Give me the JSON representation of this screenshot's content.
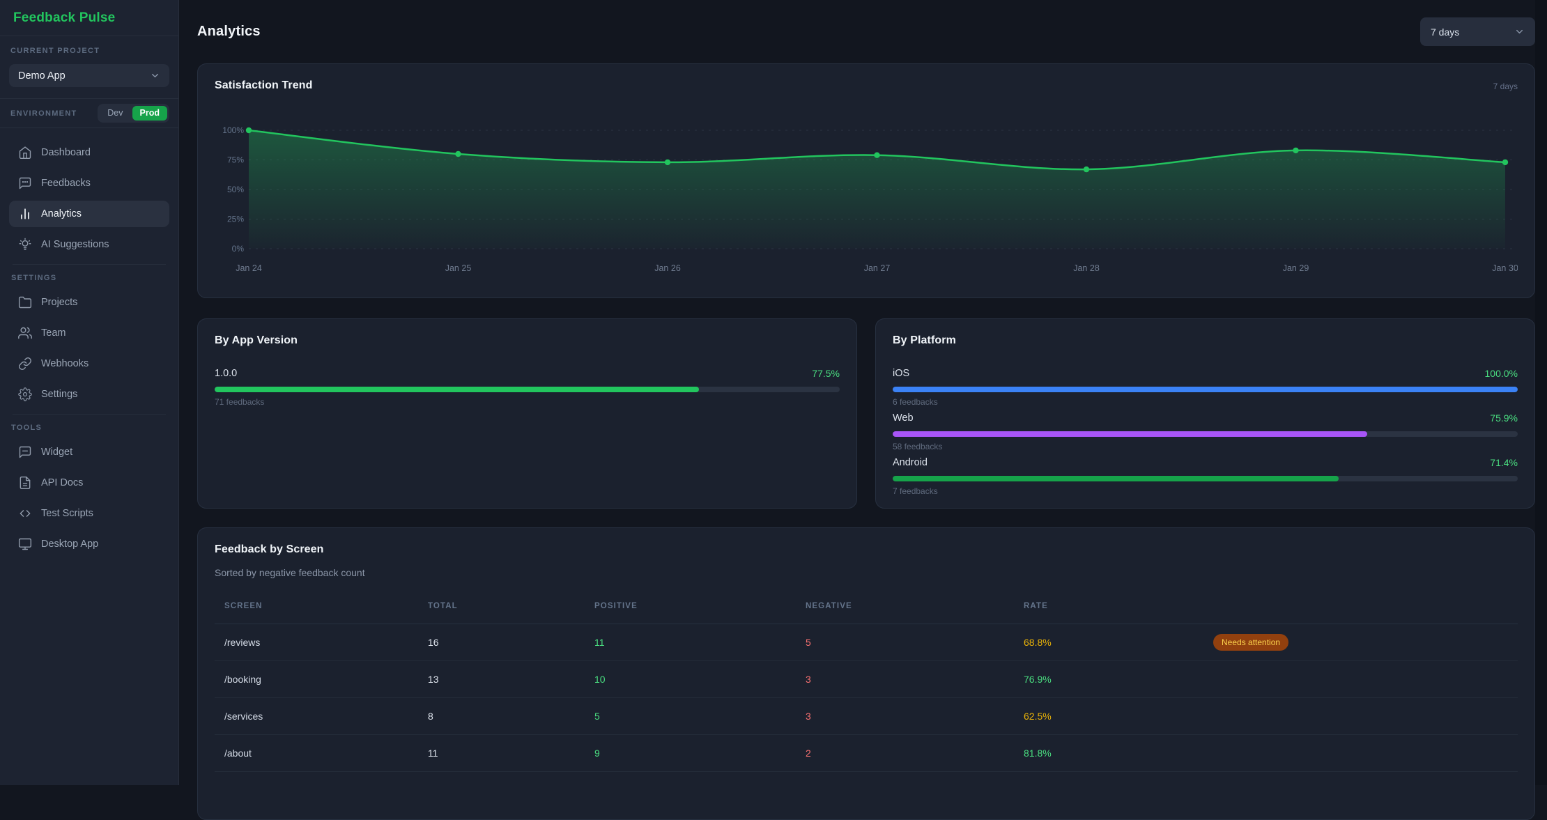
{
  "app": {
    "title": "Feedback Pulse"
  },
  "sidebar": {
    "current_project_label": "CURRENT PROJECT",
    "project_select": {
      "value": "Demo App"
    },
    "environment_label": "ENVIRONMENT",
    "environment": {
      "options": [
        "Dev",
        "Prod"
      ],
      "active": "Prod"
    },
    "sections": [
      {
        "label": null,
        "items": [
          {
            "label": "Dashboard",
            "icon": "home-icon",
            "active": false
          },
          {
            "label": "Feedbacks",
            "icon": "chat-bubble-icon",
            "active": false
          },
          {
            "label": "Analytics",
            "icon": "bar-chart-icon",
            "active": true
          },
          {
            "label": "AI Suggestions",
            "icon": "lightbulb-icon",
            "active": false
          }
        ]
      },
      {
        "label": "SETTINGS",
        "items": [
          {
            "label": "Projects",
            "icon": "folder-icon",
            "active": false
          },
          {
            "label": "Team",
            "icon": "users-icon",
            "active": false
          },
          {
            "label": "Webhooks",
            "icon": "link-icon",
            "active": false
          },
          {
            "label": "Settings",
            "icon": "gear-icon",
            "active": false
          }
        ]
      },
      {
        "label": "TOOLS",
        "items": [
          {
            "label": "Widget",
            "icon": "widget-chat-icon",
            "active": false
          },
          {
            "label": "API Docs",
            "icon": "file-text-icon",
            "active": false
          },
          {
            "label": "Test Scripts",
            "icon": "code-icon",
            "active": false
          },
          {
            "label": "Desktop App",
            "icon": "monitor-icon",
            "active": false
          }
        ]
      }
    ]
  },
  "header": {
    "title": "Analytics",
    "range_select": {
      "value": "7 days"
    }
  },
  "satisfaction_card": {
    "title": "Satisfaction Trend",
    "range_label": "7 days"
  },
  "chart_data": {
    "type": "area",
    "title": "Satisfaction Trend",
    "x": [
      "Jan 24",
      "Jan 25",
      "Jan 26",
      "Jan 27",
      "Jan 28",
      "Jan 29",
      "Jan 30"
    ],
    "values": [
      100,
      80,
      73,
      79,
      67,
      83,
      73
    ],
    "y_ticks": [
      "100%",
      "75%",
      "50%",
      "25%",
      "0%"
    ],
    "ylim": [
      0,
      100
    ],
    "grid": "horizontal-dashed",
    "line_color": "#22c55e",
    "legend": "none"
  },
  "version_card": {
    "title": "By App Version",
    "rows": [
      {
        "label": "1.0.0",
        "pct": "77.5%",
        "pct_value": 77.5,
        "feedbacks": "71 feedbacks",
        "color": "#22c55e"
      }
    ]
  },
  "platform_card": {
    "title": "By Platform",
    "rows": [
      {
        "label": "iOS",
        "pct": "100.0%",
        "pct_value": 100,
        "feedbacks": "6 feedbacks",
        "color": "#3b82f6"
      },
      {
        "label": "Web",
        "pct": "75.9%",
        "pct_value": 75.9,
        "feedbacks": "58 feedbacks",
        "color": "#a855f7"
      },
      {
        "label": "Android",
        "pct": "71.4%",
        "pct_value": 71.4,
        "feedbacks": "7 feedbacks",
        "color": "#16a34a"
      }
    ]
  },
  "screen_card": {
    "title": "Feedback by Screen",
    "subtitle": "Sorted by negative feedback count",
    "columns": [
      "SCREEN",
      "TOTAL",
      "POSITIVE",
      "NEGATIVE",
      "RATE"
    ],
    "rows": [
      {
        "screen": "/reviews",
        "total": "16",
        "positive": "11",
        "negative": "5",
        "rate": "68.8%",
        "rate_color": "#eab308",
        "badge": "Needs attention"
      },
      {
        "screen": "/booking",
        "total": "13",
        "positive": "10",
        "negative": "3",
        "rate": "76.9%",
        "rate_color": "#4ade80",
        "badge": null
      },
      {
        "screen": "/services",
        "total": "8",
        "positive": "5",
        "negative": "3",
        "rate": "62.5%",
        "rate_color": "#eab308",
        "badge": null
      },
      {
        "screen": "/about",
        "total": "11",
        "positive": "9",
        "negative": "2",
        "rate": "81.8%",
        "rate_color": "#4ade80",
        "badge": null
      }
    ]
  },
  "colors": {
    "accent_green": "#22c55e",
    "positive_green": "#4ade80",
    "negative_red": "#f87171",
    "warn_yellow": "#eab308",
    "ios_blue": "#3b82f6",
    "web_purple": "#a855f7",
    "android_green": "#16a34a",
    "prod_badge_green": "#16a34a",
    "badge_bg": "#92400e",
    "badge_text": "#fcd34d"
  }
}
